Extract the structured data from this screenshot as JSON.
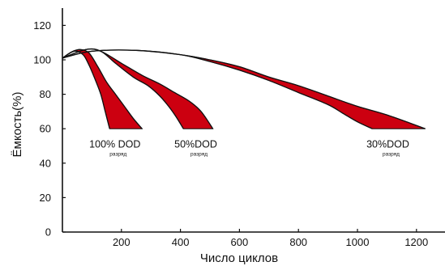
{
  "chart_data": {
    "type": "area",
    "title": "",
    "xlabel": "Число циклов",
    "ylabel": "Ёмкость(%)",
    "xlim": [
      0,
      1250
    ],
    "ylim": [
      0,
      130
    ],
    "x_ticks": [
      200,
      400,
      600,
      800,
      1000,
      1200
    ],
    "y_ticks": [
      0,
      20,
      40,
      60,
      80,
      100,
      120
    ],
    "grid": false,
    "fill_color": "#cc0010",
    "line_color": "#111111",
    "series": [
      {
        "name": "100%DOD",
        "upper": [
          [
            0,
            101
          ],
          [
            30,
            104.5
          ],
          [
            60,
            106
          ],
          [
            90,
            104
          ],
          [
            120,
            96
          ],
          [
            150,
            87
          ],
          [
            180,
            80
          ],
          [
            210,
            73
          ],
          [
            240,
            66
          ],
          [
            270,
            60
          ]
        ],
        "lower": [
          [
            0,
            101
          ],
          [
            40,
            105
          ],
          [
            70,
            103
          ],
          [
            90,
            97
          ],
          [
            110,
            89
          ],
          [
            130,
            80
          ],
          [
            145,
            70
          ],
          [
            160,
            60
          ]
        ],
        "label_main": "100% DOD",
        "label_sub": "разряд",
        "label_at": [
          178,
          49
        ]
      },
      {
        "name": "50%DOD",
        "upper": [
          [
            0,
            101
          ],
          [
            80,
            106
          ],
          [
            130,
            105
          ],
          [
            200,
            98
          ],
          [
            270,
            91
          ],
          [
            330,
            86
          ],
          [
            380,
            81
          ],
          [
            430,
            76
          ],
          [
            470,
            70
          ],
          [
            510,
            60
          ]
        ],
        "lower": [
          [
            0,
            101
          ],
          [
            80,
            106
          ],
          [
            130,
            105
          ],
          [
            180,
            98
          ],
          [
            240,
            90
          ],
          [
            290,
            85
          ],
          [
            330,
            79
          ],
          [
            360,
            73
          ],
          [
            385,
            67
          ],
          [
            410,
            60
          ]
        ],
        "label_main": "50%DOD",
        "label_sub": "разряд",
        "label_at": [
          452,
          49
        ]
      },
      {
        "name": "30%DOD",
        "upper": [
          [
            0,
            101
          ],
          [
            100,
            105
          ],
          [
            250,
            105.5
          ],
          [
            400,
            103
          ],
          [
            500,
            100
          ],
          [
            600,
            96
          ],
          [
            700,
            90
          ],
          [
            800,
            85
          ],
          [
            900,
            79
          ],
          [
            1000,
            73
          ],
          [
            1100,
            68
          ],
          [
            1230,
            60
          ]
        ],
        "lower": [
          [
            0,
            101
          ],
          [
            100,
            105
          ],
          [
            250,
            105.5
          ],
          [
            400,
            103
          ],
          [
            500,
            99
          ],
          [
            600,
            94
          ],
          [
            700,
            88
          ],
          [
            800,
            81
          ],
          [
            900,
            74
          ],
          [
            950,
            69
          ],
          [
            1000,
            64
          ],
          [
            1050,
            60
          ]
        ],
        "label_main": "30%DOD",
        "label_sub": "разряд",
        "label_at": [
          1103,
          49
        ]
      }
    ]
  }
}
